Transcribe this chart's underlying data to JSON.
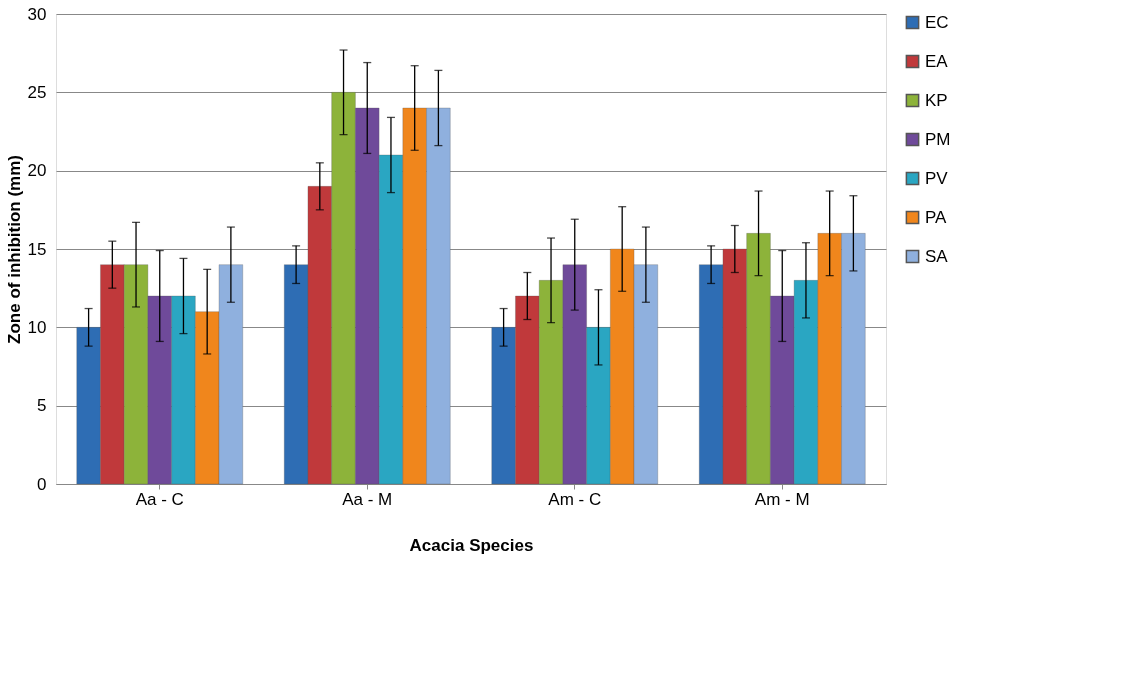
{
  "chart_data": {
    "type": "bar",
    "xlabel": "Acacia  Species",
    "ylabel": "Zone of inhibition (mm)",
    "categories": [
      "Aa - C",
      "Aa - M",
      "Am - C",
      "Am - M"
    ],
    "series": [
      {
        "name": "EC",
        "color": "#2e6db4",
        "values": [
          10,
          14,
          10,
          14
        ],
        "errors": [
          1.2,
          1.2,
          1.2,
          1.2
        ]
      },
      {
        "name": "EA",
        "color": "#c0393b",
        "values": [
          14,
          19,
          12,
          15
        ],
        "errors": [
          1.5,
          1.5,
          1.5,
          1.5
        ]
      },
      {
        "name": "KP",
        "color": "#8db33a",
        "values": [
          14,
          25,
          13,
          16
        ],
        "errors": [
          2.7,
          2.7,
          2.7,
          2.7
        ]
      },
      {
        "name": "PM",
        "color": "#6f4a9a",
        "values": [
          12,
          24,
          14,
          12
        ],
        "errors": [
          2.9,
          2.9,
          2.9,
          2.9
        ]
      },
      {
        "name": "PV",
        "color": "#2aa6c2",
        "values": [
          12,
          21,
          10,
          13
        ],
        "errors": [
          2.4,
          2.4,
          2.4,
          2.4
        ]
      },
      {
        "name": "PA",
        "color": "#f0861c",
        "values": [
          11,
          24,
          15,
          16
        ],
        "errors": [
          2.7,
          2.7,
          2.7,
          2.7
        ]
      },
      {
        "name": "SA",
        "color": "#8fb0de",
        "values": [
          14,
          24,
          14,
          16
        ],
        "errors": [
          2.4,
          2.4,
          2.4,
          2.4
        ]
      }
    ],
    "ylim": [
      0,
      30
    ],
    "yticks": [
      0,
      5,
      10,
      15,
      20,
      25,
      30
    ],
    "grid": "y",
    "legend": "right"
  }
}
